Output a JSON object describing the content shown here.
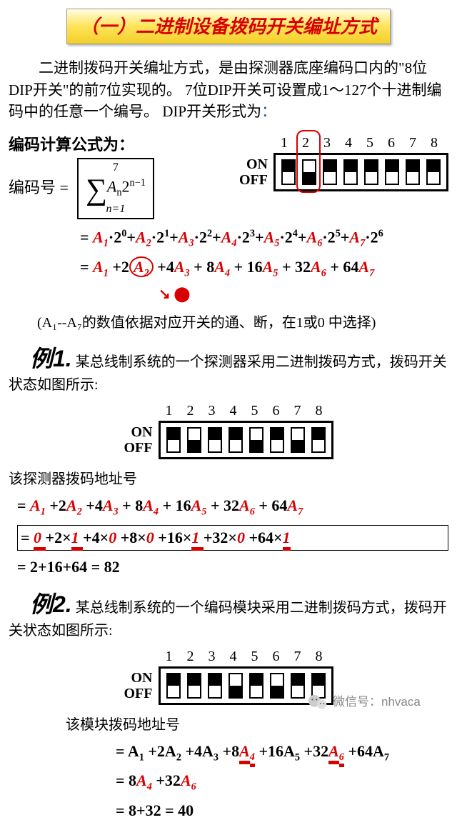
{
  "title": "（一）二进制设备拨码开关编址方式",
  "intro": "二进制拨码开关编址方式，是由探测器底座编码口内的\"8位DIP开关\"的前7位实现的。 7位DIP开关可设置成1～127个十进制编码中的任意一个编号。 DIP开关形式为",
  "formula_title": "编码计算公式为：",
  "encode_label": "编码号 =",
  "on_label": "ON",
  "off_label": "OFF",
  "dip_numbers": [
    "1",
    "2",
    "3",
    "4",
    "5",
    "6",
    "7",
    "8"
  ],
  "dip_main_states": [
    "off",
    "on",
    "off",
    "off",
    "off",
    "off",
    "off",
    "off"
  ],
  "dip_main_highlight_index": 1,
  "dip_main_highlight_color": "#d80000",
  "terms": {
    "A": [
      "A",
      "1",
      "A",
      "2",
      "A",
      "3",
      "A",
      "4",
      "A",
      "5",
      "A",
      "6",
      "A",
      "7"
    ]
  },
  "expansion1_parts": [
    {
      "t": "= ",
      "c": "k"
    },
    {
      "t": "A",
      "c": "r"
    },
    {
      "t": "1",
      "c": "rs"
    },
    {
      "t": "·2",
      "c": "k"
    },
    {
      "t": "0",
      "c": "ks"
    },
    {
      "t": "+",
      "c": "k"
    },
    {
      "t": "A",
      "c": "r"
    },
    {
      "t": "2",
      "c": "rs"
    },
    {
      "t": "·2",
      "c": "k"
    },
    {
      "t": "1",
      "c": "ks"
    },
    {
      "t": "+",
      "c": "k"
    },
    {
      "t": "A",
      "c": "r"
    },
    {
      "t": "3",
      "c": "rs"
    },
    {
      "t": "·2",
      "c": "k"
    },
    {
      "t": "2",
      "c": "ks"
    },
    {
      "t": "+",
      "c": "k"
    },
    {
      "t": "A",
      "c": "r"
    },
    {
      "t": "4",
      "c": "rs"
    },
    {
      "t": "·2",
      "c": "k"
    },
    {
      "t": "3",
      "c": "ks"
    },
    {
      "t": "+",
      "c": "k"
    },
    {
      "t": "A",
      "c": "r"
    },
    {
      "t": "5",
      "c": "rs"
    },
    {
      "t": "·2",
      "c": "k"
    },
    {
      "t": "4",
      "c": "ks"
    },
    {
      "t": "+",
      "c": "k"
    },
    {
      "t": "A",
      "c": "r"
    },
    {
      "t": "6",
      "c": "rs"
    },
    {
      "t": "·2",
      "c": "k"
    },
    {
      "t": "5",
      "c": "ks"
    },
    {
      "t": "+",
      "c": "k"
    },
    {
      "t": "A",
      "c": "r"
    },
    {
      "t": "7",
      "c": "rs"
    },
    {
      "t": "·2",
      "c": "k"
    },
    {
      "t": "6",
      "c": "ks"
    }
  ],
  "expansion2_parts": [
    {
      "t": "= ",
      "c": "k"
    },
    {
      "t": "A",
      "c": "r"
    },
    {
      "t": "1",
      "c": "rs"
    },
    {
      "t": " +2",
      "c": "k"
    },
    {
      "t": "A",
      "c": "r",
      "circ": true
    },
    {
      "t": "2",
      "c": "rs",
      "circ": true
    },
    {
      "t": " +4",
      "c": "k"
    },
    {
      "t": "A",
      "c": "r"
    },
    {
      "t": "3",
      "c": "rs"
    },
    {
      "t": " + 8",
      "c": "k"
    },
    {
      "t": "A",
      "c": "r"
    },
    {
      "t": "4",
      "c": "rs"
    },
    {
      "t": " + 16",
      "c": "k"
    },
    {
      "t": "A",
      "c": "r"
    },
    {
      "t": "5",
      "c": "rs"
    },
    {
      "t": " + 32",
      "c": "k"
    },
    {
      "t": "A",
      "c": "r"
    },
    {
      "t": "6",
      "c": "rs"
    },
    {
      "t": " + 64",
      "c": "k"
    },
    {
      "t": "A",
      "c": "r"
    },
    {
      "t": "7",
      "c": "rs"
    }
  ],
  "note_text": "(A₁--A₇的数值依据对应开关的通、断，在1或0 中选择)",
  "ex1_label": "例1.",
  "ex1_text": "某总线制系统的一个探测器采用二进制拨码方式，拨码开关状态如图所示:",
  "dip_ex1_states": [
    "off",
    "on",
    "off",
    "off",
    "on",
    "off",
    "on",
    "off"
  ],
  "ex1_addr_label": "该探测器拨码地址号",
  "ex1_line1": [
    {
      "t": "= ",
      "c": "k"
    },
    {
      "t": "A",
      "c": "r"
    },
    {
      "t": "1",
      "c": "rs"
    },
    {
      "t": " +2",
      "c": "k"
    },
    {
      "t": "A",
      "c": "r"
    },
    {
      "t": "2",
      "c": "rs"
    },
    {
      "t": " +4",
      "c": "k"
    },
    {
      "t": "A",
      "c": "r"
    },
    {
      "t": "3",
      "c": "rs"
    },
    {
      "t": " + 8",
      "c": "k"
    },
    {
      "t": "A",
      "c": "r"
    },
    {
      "t": "4",
      "c": "rs"
    },
    {
      "t": " + 16",
      "c": "k"
    },
    {
      "t": "A",
      "c": "r"
    },
    {
      "t": "5",
      "c": "rs"
    },
    {
      "t": " + 32",
      "c": "k"
    },
    {
      "t": "A",
      "c": "r"
    },
    {
      "t": "6",
      "c": "rs"
    },
    {
      "t": " + 64",
      "c": "k"
    },
    {
      "t": "A",
      "c": "r"
    },
    {
      "t": "7",
      "c": "rs"
    }
  ],
  "ex1_line2": [
    {
      "t": "= ",
      "c": "k"
    },
    {
      "t": " 0 ",
      "c": "r",
      "u": true
    },
    {
      "t": "+2×",
      "c": "k"
    },
    {
      "t": "1 ",
      "c": "r",
      "u": true
    },
    {
      "t": "+4×",
      "c": "k"
    },
    {
      "t": "0 ",
      "c": "r"
    },
    {
      "t": "+8×",
      "c": "k"
    },
    {
      "t": "0 ",
      "c": "r"
    },
    {
      "t": "+16×",
      "c": "k"
    },
    {
      "t": "1 ",
      "c": "r",
      "u": true
    },
    {
      "t": "+32×",
      "c": "k"
    },
    {
      "t": "0 ",
      "c": "r"
    },
    {
      "t": "+64×",
      "c": "k"
    },
    {
      "t": "1",
      "c": "r",
      "u": true
    }
  ],
  "ex1_result": "= 2+16+64 =  82",
  "ex2_label": "例2.",
  "ex2_text": "某总线制系统的一个编码模块采用二进制拨码方式，拨码开关状态如图所示:",
  "dip_ex2_states": [
    "off",
    "off",
    "off",
    "on",
    "off",
    "on",
    "off",
    "off"
  ],
  "ex2_addr_label": "该模块拨码地址号",
  "ex2_line1": [
    {
      "t": "= A",
      "c": "k"
    },
    {
      "t": "1",
      "c": "ks"
    },
    {
      "t": " +2A",
      "c": "k"
    },
    {
      "t": "2",
      "c": "ks"
    },
    {
      "t": " +4A",
      "c": "k"
    },
    {
      "t": "3",
      "c": "ks"
    },
    {
      "t": " +8",
      "c": "k"
    },
    {
      "t": "A",
      "c": "r",
      "u": true
    },
    {
      "t": "4",
      "c": "rs",
      "u": true
    },
    {
      "t": " +16A",
      "c": "k"
    },
    {
      "t": "5",
      "c": "ks"
    },
    {
      "t": " +32",
      "c": "k"
    },
    {
      "t": "A",
      "c": "r",
      "u": true
    },
    {
      "t": "6",
      "c": "rs",
      "u": true
    },
    {
      "t": " +64A",
      "c": "k"
    },
    {
      "t": "7",
      "c": "ks"
    }
  ],
  "ex2_line2": [
    {
      "t": "= 8",
      "c": "k"
    },
    {
      "t": "A",
      "c": "r"
    },
    {
      "t": "4",
      "c": "rs"
    },
    {
      "t": " +32",
      "c": "k"
    },
    {
      "t": "A",
      "c": "r"
    },
    {
      "t": "6",
      "c": "rs"
    }
  ],
  "ex2_result": "= 8+32  =  40",
  "watermark": "微信号：nhvaca",
  "colors": {
    "red": "#d80000",
    "banner_grad_top": "#fffde0",
    "banner_grad_bot": "#f2cf28",
    "link": "#1155cc"
  }
}
